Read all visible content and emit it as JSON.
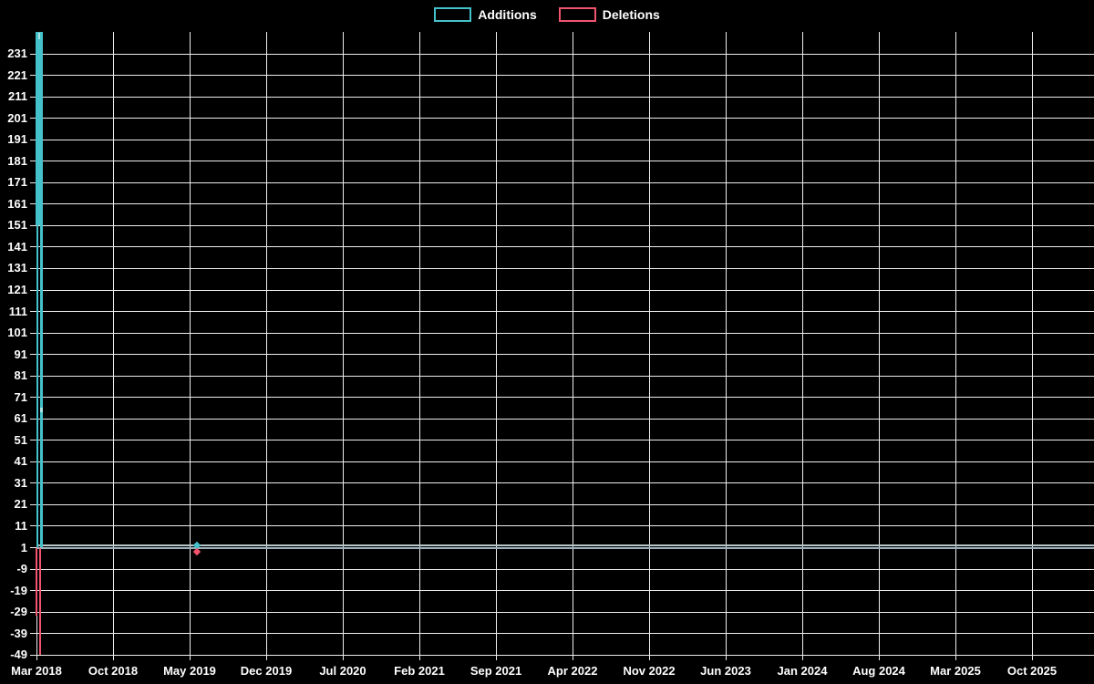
{
  "legend": {
    "additions_label": "Additions",
    "deletions_label": "Deletions"
  },
  "chart_data": {
    "type": "line",
    "title": "",
    "xlabel": "",
    "ylabel": "",
    "legend_position": "top",
    "grid": true,
    "background_color": "#000000",
    "grid_color": "#ededed",
    "text_color": "#ffffff",
    "baseline_muted_colors": [
      "#b6c5c8",
      "#9eb2bd"
    ],
    "y_axis": {
      "min": -49,
      "max": 241,
      "step": 10,
      "tick_labels": [
        "231",
        "221",
        "211",
        "201",
        "191",
        "181",
        "171",
        "161",
        "151",
        "141",
        "131",
        "121",
        "111",
        "101",
        "91",
        "81",
        "71",
        "61",
        "51",
        "41",
        "31",
        "21",
        "11",
        "1",
        "-9",
        "-19",
        "-29",
        "-39",
        "-49"
      ]
    },
    "x_axis": {
      "tick_labels": [
        "Mar 2018",
        "Oct 2018",
        "May 2019",
        "Dec 2019",
        "Jul 2020",
        "Feb 2021",
        "Sep 2021",
        "Apr 2022",
        "Nov 2022",
        "Jun 2023",
        "Jan 2024",
        "Aug 2024",
        "Mar 2025",
        "Oct 2025"
      ]
    },
    "legend_entries": [
      {
        "label": "Additions",
        "color": "#45c2c9"
      },
      {
        "label": "Deletions",
        "color": "#f0546e"
      }
    ],
    "series": [
      {
        "name": "Additions",
        "color": "#45c2c9",
        "marker_color": "#aee6e8",
        "weekly_peaks": [
          {
            "week": "Mar 2018 (week 1)",
            "value": 241
          },
          {
            "week": "Mar 2018 (week 2)",
            "value": 65
          }
        ],
        "steady_value": 1,
        "isolated_point": {
          "approx_date": "Jun 2019",
          "value": 2
        }
      },
      {
        "name": "Deletions",
        "color": "#f0546e",
        "marker_color": "#f78ba0",
        "weekly_peaks": [
          {
            "week": "Mar 2018 (week 1)",
            "value": -31
          },
          {
            "week": "Mar 2018 (week 2)",
            "value": -49
          }
        ],
        "steady_value": 0,
        "isolated_point": {
          "approx_date": "Jun 2019",
          "value": -1
        }
      }
    ]
  }
}
